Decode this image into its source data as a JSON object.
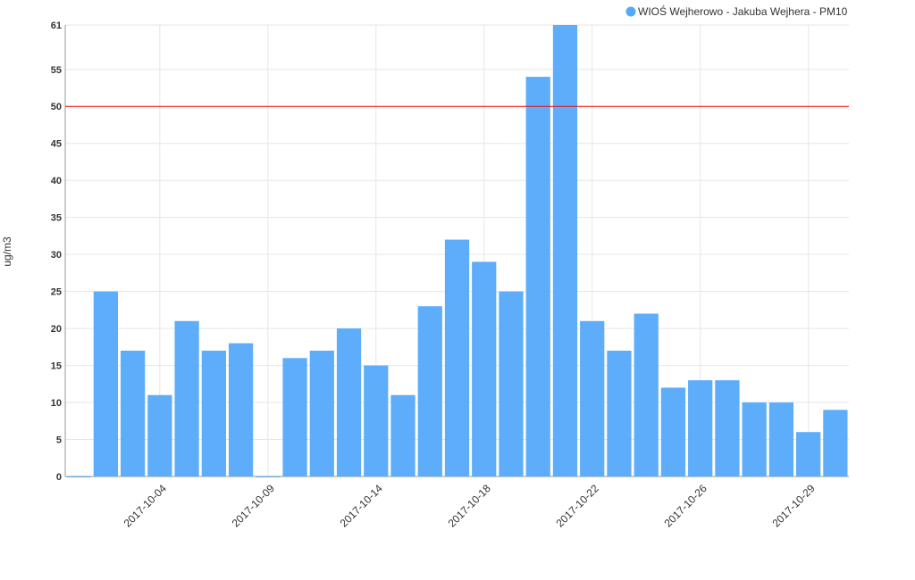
{
  "chart_data": {
    "type": "bar",
    "y_label": "ug/m3",
    "categories": [
      null,
      null,
      null,
      "2017-10-04",
      null,
      null,
      null,
      "2017-10-09",
      null,
      null,
      null,
      "2017-10-14",
      null,
      null,
      null,
      "2017-10-18",
      null,
      null,
      null,
      "2017-10-22",
      null,
      null,
      null,
      "2017-10-26",
      null,
      null,
      null,
      "2017-10-29",
      null
    ],
    "series": [
      {
        "name": "WIOŚ Wejherowo - Jakuba Wejhera - PM10",
        "color": "#54a9fb",
        "values": [
          0,
          25,
          17,
          11,
          21,
          17,
          18,
          0,
          16,
          17,
          20,
          15,
          11,
          23,
          32,
          29,
          25,
          54,
          61,
          21,
          17,
          22,
          12,
          13,
          13,
          10,
          10,
          6,
          9
        ]
      }
    ],
    "ylim": [
      0,
      61
    ],
    "yticks": [
      0,
      5,
      10,
      15,
      20,
      25,
      30,
      35,
      40,
      45,
      50,
      55,
      61
    ],
    "threshold": {
      "value": 50,
      "color": "#ff0000"
    },
    "grid": true
  }
}
